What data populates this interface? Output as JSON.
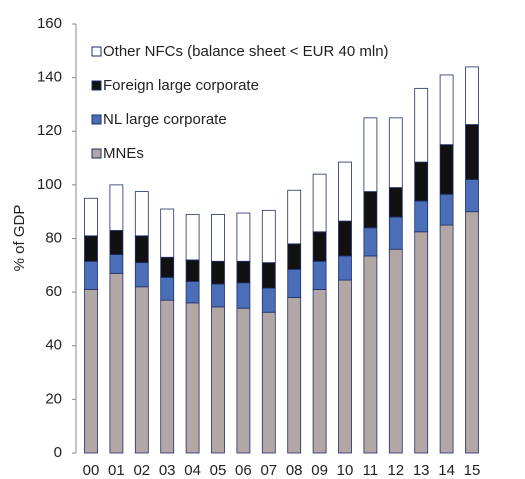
{
  "chart_data": {
    "type": "stacked_bar",
    "y_label": "% of GDP",
    "categories": [
      "00",
      "01",
      "02",
      "03",
      "04",
      "05",
      "06",
      "07",
      "08",
      "09",
      "10",
      "11",
      "12",
      "13",
      "14",
      "15"
    ],
    "series": [
      {
        "name": "MNEs",
        "color": "#b3a7a5",
        "values": [
          61,
          67,
          62,
          57,
          56,
          54.5,
          54,
          52.5,
          58,
          61,
          64.5,
          73.5,
          76,
          82.5,
          85,
          90
        ]
      },
      {
        "name": "NL large corporate",
        "color": "#4a6fb8",
        "values": [
          10.5,
          7,
          9,
          8.5,
          8,
          8.5,
          9.5,
          9,
          10.5,
          10.5,
          9,
          10.5,
          12,
          11.5,
          11.5,
          12
        ]
      },
      {
        "name": "Foreign large corporate",
        "color": "#111111",
        "values": [
          9.5,
          9,
          10,
          7.5,
          8,
          8.5,
          8,
          9.5,
          9.5,
          11,
          13,
          13.5,
          11,
          14.5,
          18.5,
          20.5
        ]
      },
      {
        "name": "Other NFCs (balance sheet < EUR 40 mln)",
        "color": "#ffffff",
        "values": [
          14,
          17,
          16.5,
          18,
          17,
          17.5,
          18,
          19.5,
          20,
          21.5,
          22,
          27.5,
          26,
          27.5,
          26,
          21.5
        ]
      }
    ],
    "ylim": [
      0,
      160
    ],
    "yticks": [
      0,
      20,
      40,
      60,
      80,
      100,
      120,
      140,
      160
    ],
    "edge_color": "#1f2d6b"
  }
}
